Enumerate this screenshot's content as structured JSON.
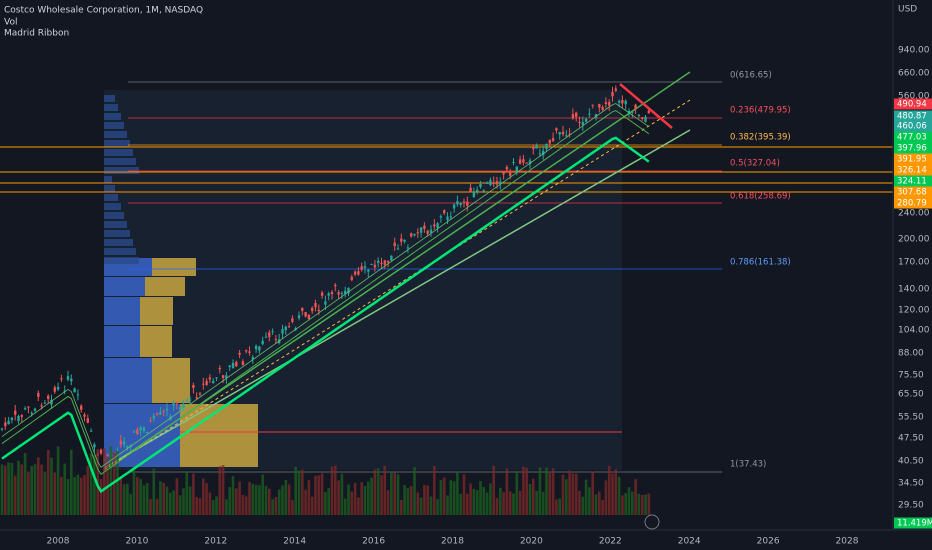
{
  "header": {
    "title": "Costco Wholesale Corporation, 1M, NASDAQ",
    "volume": "Vol",
    "indicator": "Madrid Ribbon"
  },
  "price_axis": {
    "unit": "USD",
    "labels": [
      "940.00",
      "660.00",
      "560.00",
      "240.00",
      "200.00",
      "170.00",
      "140.00",
      "120.00",
      "104.00",
      "88.00",
      "75.50",
      "65.50",
      "55.50",
      "47.50",
      "40.50",
      "34.50",
      "29.50"
    ],
    "tags": [
      "490.94",
      "480.87",
      "460.06",
      "477.03",
      "397.96",
      "391.95",
      "326.14",
      "324.11",
      "307.68",
      "280.79",
      "11.419M"
    ]
  },
  "time_axis": [
    "2008",
    "2010",
    "2012",
    "2014",
    "2016",
    "2018",
    "2020",
    "2022",
    "2024",
    "2026",
    "2028"
  ],
  "fib_levels": [
    "0(616.65)",
    "0.236(479.95)",
    "0.382(395.39)",
    "0.5(327.04)",
    "0.618(258.69)",
    "0.786(161.38)",
    "1(37.43)"
  ]
}
